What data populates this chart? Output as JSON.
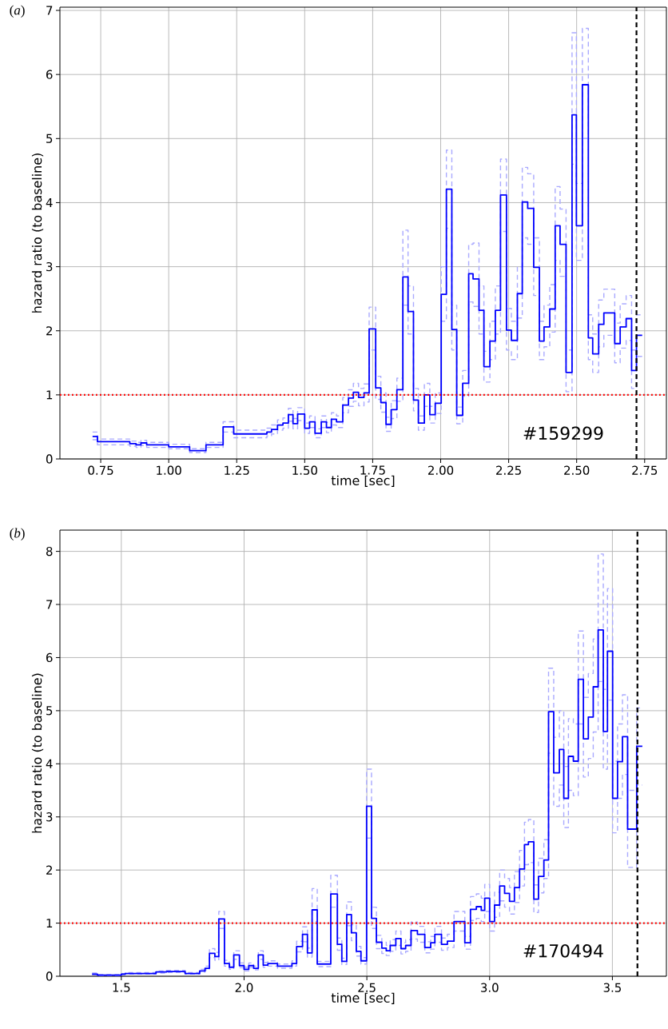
{
  "chart_data": [
    {
      "type": "step",
      "title": "(*a*)",
      "xlabel": "time [sec]",
      "ylabel": "hazard ratio (to baseline)",
      "annotations": [
        "#159299"
      ],
      "xlim": [
        0.6,
        2.83
      ],
      "ylim": [
        0,
        7.05
      ],
      "xticks": [
        {
          "value": 0.75,
          "label": "0.75"
        },
        {
          "value": 1.0,
          "label": "1.00"
        },
        {
          "value": 1.25,
          "label": "1.25"
        },
        {
          "value": 1.5,
          "label": "1.50"
        },
        {
          "value": 1.75,
          "label": "1.75"
        },
        {
          "value": 2.0,
          "label": "2.00"
        },
        {
          "value": 2.25,
          "label": "2.25"
        },
        {
          "value": 2.5,
          "label": "2.50"
        },
        {
          "value": 2.75,
          "label": "2.75"
        }
      ],
      "yticks": [
        0,
        1,
        2,
        3,
        4,
        5,
        6,
        7
      ],
      "grid": true,
      "ref_lines": [
        {
          "axis": "y",
          "value": 1,
          "color": "#ff0000",
          "line_style": "dotted"
        },
        {
          "axis": "x",
          "value": 2.72,
          "color": "#000000",
          "line_style": "dashed"
        }
      ],
      "x": [
        0.72,
        0.738,
        0.857,
        0.88,
        0.898,
        0.919,
        1.0,
        1.077,
        1.137,
        1.2,
        1.239,
        1.361,
        1.378,
        1.4,
        1.42,
        1.44,
        1.457,
        1.474,
        1.5,
        1.518,
        1.538,
        1.561,
        1.58,
        1.598,
        1.617,
        1.64,
        1.661,
        1.679,
        1.698,
        1.718,
        1.737,
        1.761,
        1.78,
        1.799,
        1.818,
        1.839,
        1.861,
        1.88,
        1.9,
        1.918,
        1.94,
        1.96,
        1.98,
        2.002,
        2.021,
        2.041,
        2.059,
        2.081,
        2.103,
        2.119,
        2.141,
        2.159,
        2.181,
        2.201,
        2.22,
        2.242,
        2.26,
        2.282,
        2.3,
        2.32,
        2.342,
        2.363,
        2.38,
        2.401,
        2.421,
        2.439,
        2.461,
        2.483,
        2.499,
        2.521,
        2.543,
        2.559,
        2.581,
        2.6,
        2.64,
        2.66,
        2.682,
        2.702,
        2.72,
        2.741
      ],
      "series": [
        {
          "color": "#0000ff",
          "line_style": "solid",
          "values": [
            0.35,
            0.27,
            0.24,
            0.22,
            0.25,
            0.22,
            0.19,
            0.13,
            0.22,
            0.5,
            0.39,
            0.42,
            0.46,
            0.53,
            0.56,
            0.69,
            0.55,
            0.7,
            0.48,
            0.58,
            0.4,
            0.58,
            0.49,
            0.62,
            0.58,
            0.84,
            0.95,
            1.04,
            0.96,
            1.03,
            2.03,
            1.11,
            0.88,
            0.54,
            0.77,
            1.08,
            2.84,
            2.3,
            0.92,
            0.56,
            1.0,
            0.69,
            0.87,
            2.57,
            4.21,
            2.02,
            0.68,
            1.18,
            2.89,
            2.81,
            2.32,
            1.44,
            1.84,
            2.32,
            4.12,
            2.01,
            1.85,
            2.58,
            4.01,
            3.91,
            2.99,
            1.84,
            2.06,
            2.34,
            3.64,
            3.35,
            1.35,
            5.37,
            3.64,
            5.84,
            1.89,
            1.64,
            2.1,
            2.28,
            1.8,
            2.06,
            2.19,
            1.38,
            1.93,
            1.93
          ]
        },
        {
          "color": "#aaaaff",
          "line_style": "dashed",
          "values": [
            0.3,
            0.22,
            0.2,
            0.18,
            0.21,
            0.18,
            0.16,
            0.1,
            0.18,
            0.42,
            0.33,
            0.36,
            0.39,
            0.45,
            0.48,
            0.59,
            0.47,
            0.6,
            0.4,
            0.49,
            0.33,
            0.49,
            0.41,
            0.53,
            0.49,
            0.72,
            0.82,
            0.9,
            0.83,
            0.89,
            1.7,
            0.93,
            0.73,
            0.43,
            0.63,
            0.9,
            2.4,
            1.95,
            0.75,
            0.45,
            0.82,
            0.56,
            0.71,
            2.15,
            3.6,
            1.7,
            0.55,
            0.98,
            2.45,
            2.38,
            1.95,
            1.2,
            1.55,
            1.95,
            3.55,
            1.7,
            1.55,
            2.2,
            3.45,
            3.35,
            2.55,
            1.55,
            1.75,
            1.98,
            3.1,
            2.85,
            1.05,
            4.6,
            3.1,
            5.0,
            1.55,
            1.35,
            1.75,
            1.93,
            1.5,
            1.73,
            1.85,
            1.1,
            1.6,
            1.6
          ]
        },
        {
          "color": "#aaaaff",
          "line_style": "dashed",
          "values": [
            0.42,
            0.31,
            0.28,
            0.26,
            0.29,
            0.26,
            0.23,
            0.16,
            0.26,
            0.58,
            0.45,
            0.48,
            0.53,
            0.61,
            0.64,
            0.79,
            0.63,
            0.8,
            0.56,
            0.67,
            0.47,
            0.67,
            0.57,
            0.72,
            0.67,
            0.96,
            1.08,
            1.18,
            1.1,
            1.17,
            2.37,
            1.29,
            1.03,
            0.65,
            0.91,
            1.26,
            3.57,
            2.7,
            1.1,
            0.67,
            1.18,
            0.82,
            1.03,
            3.0,
            4.82,
            2.4,
            0.81,
            1.38,
            3.35,
            3.37,
            2.7,
            1.68,
            2.15,
            2.7,
            4.68,
            2.35,
            2.15,
            3.0,
            4.55,
            4.45,
            3.45,
            2.15,
            2.4,
            2.72,
            4.25,
            3.9,
            1.7,
            6.65,
            4.3,
            6.72,
            2.25,
            1.95,
            2.48,
            2.65,
            2.12,
            2.42,
            2.55,
            1.7,
            2.25,
            2.25
          ]
        }
      ]
    },
    {
      "type": "step",
      "title": "(*b*)",
      "xlabel": "time [sec]",
      "ylabel": "hazard ratio (to baseline)",
      "annotations": [
        "#170494"
      ],
      "xlim": [
        1.25,
        3.72
      ],
      "ylim": [
        0,
        8.4
      ],
      "xticks": [
        {
          "value": 1.5,
          "label": "1.5"
        },
        {
          "value": 2.0,
          "label": "2.0"
        },
        {
          "value": 2.5,
          "label": "2.5"
        },
        {
          "value": 3.0,
          "label": "3.0"
        },
        {
          "value": 3.5,
          "label": "3.5"
        }
      ],
      "yticks": [
        0,
        1,
        2,
        3,
        4,
        5,
        6,
        7,
        8
      ],
      "grid": true,
      "ref_lines": [
        {
          "axis": "y",
          "value": 1,
          "color": "#ff0000",
          "line_style": "dotted"
        },
        {
          "axis": "x",
          "value": 3.602,
          "color": "#000000",
          "line_style": "dashed"
        }
      ],
      "x": [
        1.381,
        1.403,
        1.5,
        1.516,
        1.641,
        1.684,
        1.76,
        1.819,
        1.841,
        1.859,
        1.881,
        1.897,
        1.92,
        1.94,
        1.958,
        1.981,
        2.0,
        2.019,
        2.039,
        2.058,
        2.078,
        2.097,
        2.136,
        2.195,
        2.214,
        2.238,
        2.258,
        2.277,
        2.298,
        2.353,
        2.38,
        2.398,
        2.418,
        2.437,
        2.457,
        2.476,
        2.499,
        2.519,
        2.539,
        2.561,
        2.579,
        2.595,
        2.618,
        2.639,
        2.658,
        2.68,
        2.706,
        2.736,
        2.76,
        2.777,
        2.804,
        2.828,
        2.855,
        2.899,
        2.922,
        2.946,
        2.966,
        2.98,
        3.0,
        3.02,
        3.041,
        3.061,
        3.081,
        3.101,
        3.122,
        3.142,
        3.158,
        3.18,
        3.199,
        3.221,
        3.24,
        3.261,
        3.284,
        3.302,
        3.321,
        3.341,
        3.361,
        3.382,
        3.402,
        3.422,
        3.442,
        3.463,
        3.48,
        3.501,
        3.521,
        3.541,
        3.562,
        3.599,
        3.622
      ],
      "series": [
        {
          "color": "#0000ff",
          "line_style": "solid",
          "values": [
            0.04,
            0.02,
            0.04,
            0.05,
            0.08,
            0.09,
            0.05,
            0.1,
            0.15,
            0.43,
            0.37,
            1.08,
            0.24,
            0.17,
            0.4,
            0.2,
            0.13,
            0.2,
            0.15,
            0.4,
            0.21,
            0.24,
            0.19,
            0.24,
            0.56,
            0.79,
            0.44,
            1.25,
            0.23,
            1.55,
            0.6,
            0.28,
            1.16,
            0.82,
            0.47,
            0.29,
            3.2,
            1.09,
            0.64,
            0.53,
            0.48,
            0.58,
            0.71,
            0.52,
            0.58,
            0.86,
            0.79,
            0.54,
            0.63,
            0.79,
            0.6,
            0.66,
            1.03,
            0.63,
            1.26,
            1.31,
            1.24,
            1.47,
            1.03,
            1.34,
            1.7,
            1.56,
            1.41,
            1.67,
            2.02,
            2.48,
            2.53,
            1.45,
            1.88,
            2.19,
            4.98,
            3.83,
            4.27,
            3.35,
            4.14,
            4.05,
            5.59,
            4.47,
            4.88,
            5.45,
            6.52,
            4.61,
            6.12,
            3.35,
            4.04,
            4.51,
            2.77,
            4.33,
            4.33
          ]
        },
        {
          "color": "#aaaaff",
          "line_style": "dashed",
          "values": [
            0.03,
            0.01,
            0.03,
            0.04,
            0.06,
            0.07,
            0.04,
            0.08,
            0.12,
            0.35,
            0.3,
            0.9,
            0.19,
            0.13,
            0.32,
            0.16,
            0.1,
            0.16,
            0.12,
            0.32,
            0.17,
            0.19,
            0.15,
            0.19,
            0.46,
            0.65,
            0.36,
            1.03,
            0.18,
            1.3,
            0.49,
            0.22,
            0.95,
            0.67,
            0.38,
            0.23,
            2.6,
            0.9,
            0.52,
            0.43,
            0.39,
            0.47,
            0.58,
            0.42,
            0.47,
            0.7,
            0.64,
            0.44,
            0.51,
            0.64,
            0.49,
            0.54,
            0.85,
            0.51,
            1.05,
            1.09,
            1.03,
            1.22,
            0.85,
            1.11,
            1.42,
            1.3,
            1.17,
            1.39,
            1.7,
            2.1,
            2.14,
            1.2,
            1.57,
            1.84,
            4.2,
            3.2,
            3.6,
            2.8,
            3.5,
            3.4,
            4.75,
            3.75,
            4.1,
            4.6,
            5.55,
            3.9,
            5.2,
            2.7,
            3.35,
            3.8,
            2.05,
            3.6,
            3.6
          ]
        },
        {
          "color": "#aaaaff",
          "line_style": "dashed",
          "values": [
            0.06,
            0.03,
            0.05,
            0.07,
            0.1,
            0.11,
            0.07,
            0.13,
            0.19,
            0.52,
            0.45,
            1.22,
            0.3,
            0.21,
            0.48,
            0.25,
            0.17,
            0.25,
            0.19,
            0.48,
            0.26,
            0.29,
            0.23,
            0.29,
            0.66,
            0.93,
            0.53,
            1.65,
            0.28,
            1.9,
            0.72,
            0.34,
            1.4,
            0.97,
            0.56,
            0.35,
            3.9,
            1.3,
            0.77,
            0.64,
            0.58,
            0.69,
            0.85,
            0.63,
            0.69,
            1.02,
            0.94,
            0.65,
            0.75,
            0.94,
            0.72,
            0.79,
            1.22,
            0.75,
            1.5,
            1.55,
            1.47,
            1.73,
            1.22,
            1.58,
            2.0,
            1.84,
            1.67,
            1.97,
            2.37,
            2.9,
            2.95,
            1.72,
            2.22,
            2.57,
            5.8,
            4.5,
            5.0,
            3.95,
            4.85,
            4.75,
            6.5,
            5.25,
            5.7,
            6.35,
            7.95,
            5.4,
            7.3,
            4.05,
            4.75,
            5.3,
            3.5,
            5.05,
            5.05
          ]
        }
      ]
    }
  ]
}
